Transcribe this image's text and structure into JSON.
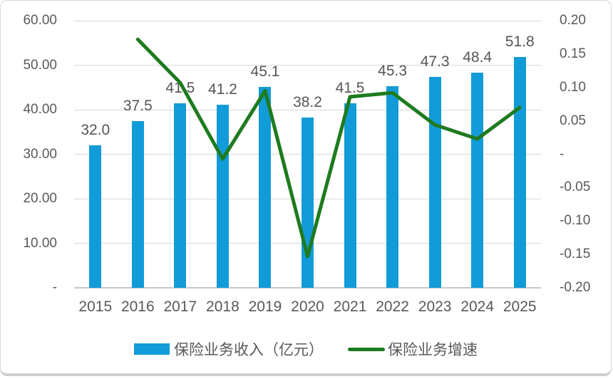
{
  "chart_data": {
    "type": "combo",
    "categories": [
      "2015",
      "2016",
      "2017",
      "2018",
      "2019",
      "2020",
      "2021",
      "2022",
      "2023",
      "2024",
      "2025"
    ],
    "series": [
      {
        "name": "保险业务收入（亿元）",
        "type": "bar",
        "axis": "left",
        "color": "#129BD9",
        "values": [
          32.0,
          37.5,
          41.5,
          41.2,
          45.1,
          38.2,
          41.5,
          45.3,
          47.3,
          48.4,
          51.8
        ],
        "labels": [
          "32.0",
          "37.5",
          "41.5",
          "41.2",
          "45.1",
          "38.2",
          "41.5",
          "45.3",
          "47.3",
          "48.4",
          "51.8"
        ]
      },
      {
        "name": "保险业务增速",
        "type": "line",
        "axis": "right",
        "color": "#1E7B1E",
        "values": [
          null,
          0.172,
          0.107,
          -0.007,
          0.095,
          -0.153,
          0.086,
          0.092,
          0.044,
          0.023,
          0.07
        ]
      }
    ],
    "left_axis": {
      "min": 0,
      "max": 60,
      "tick_labels": [
        "60.00",
        "50.00",
        "40.00",
        "30.00",
        "20.00",
        "10.00",
        "-"
      ]
    },
    "right_axis": {
      "min": -0.2,
      "max": 0.2,
      "tick_labels": [
        "0.20",
        "0.15",
        "0.10",
        "0.05",
        "-",
        "-0.05",
        "-0.10",
        "-0.15",
        "-0.20"
      ]
    },
    "title": "",
    "grid": true,
    "legend_position": "bottom"
  }
}
